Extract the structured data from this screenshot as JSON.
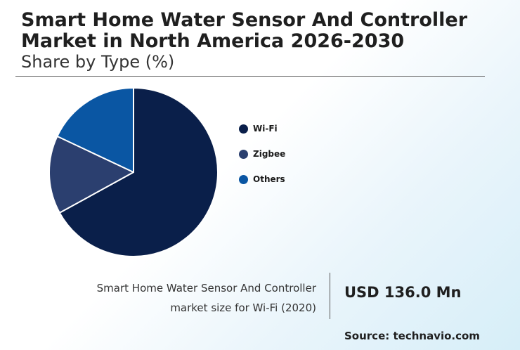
{
  "header": {
    "title": "Smart Home Water Sensor And Controller Market in North America 2026-2030",
    "subtitle": "Share by Type (%)"
  },
  "chart_data": {
    "type": "pie",
    "start_angle_deg": 0,
    "direction": "clockwise",
    "slices": [
      {
        "label": "Wi-Fi",
        "value": 67,
        "color": "#0a1f4a"
      },
      {
        "label": "Zigbee",
        "value": 15,
        "color": "#2b3f6f"
      },
      {
        "label": "Others",
        "value": 18,
        "color": "#0a56a3"
      }
    ],
    "legend_position": "right"
  },
  "callout": {
    "caption_line1": "Smart Home Water Sensor And Controller",
    "caption_line2": "market size for Wi-Fi (2020)",
    "value": "USD 136.0 Mn"
  },
  "footer": {
    "source": "Source: technavio.com"
  }
}
